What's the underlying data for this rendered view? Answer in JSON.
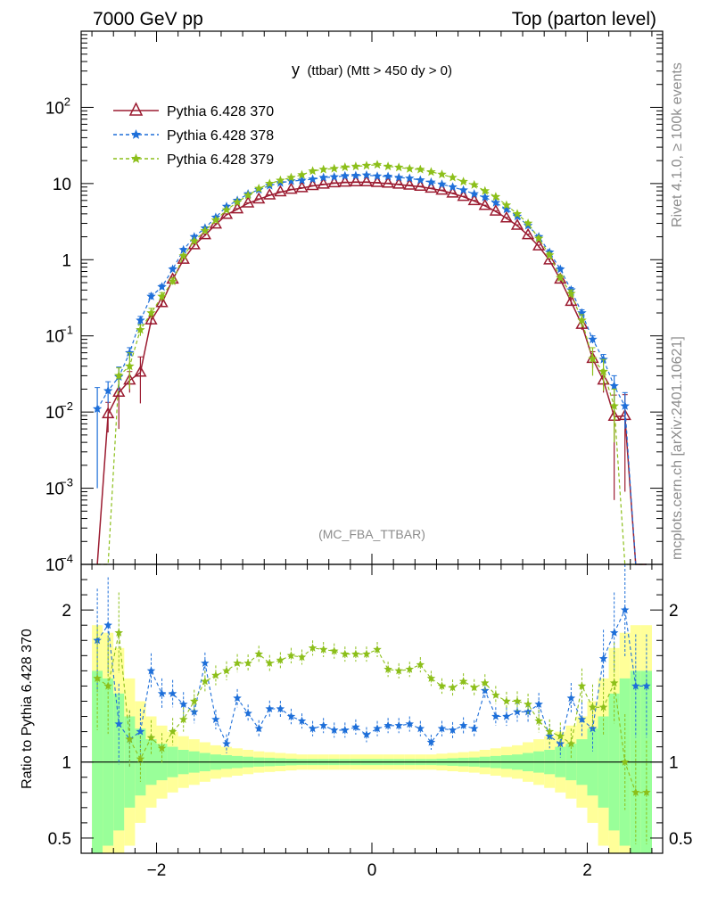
{
  "header": {
    "left": "7000 GeV pp",
    "right": "Top (parton level)"
  },
  "side_text": {
    "rivet": "Rivet 4.1.0, ≥ 100k events",
    "url": "mcplots.cern.ch [arXiv:2401.10621]"
  },
  "colors": {
    "s370": "#9b1b30",
    "s378": "#1e6fd9",
    "s379": "#8cbf1a",
    "band_outer": "#ffff99",
    "band_inner": "#99ff99",
    "label_gray": "#8c8c8c"
  },
  "chart_data": {
    "type": "line",
    "title": "y (ttbar) (Mtt > 450 dy > 0)",
    "title_main": "y",
    "title_rest": "(ttbar) (Mtt > 450 dy > 0)",
    "analysis_label": "(MC_FBA_TTBAR)",
    "xlabel": "",
    "ylabel_ratio": "Ratio to Pythia 6.428 370",
    "x_range": [
      -2.7,
      2.7
    ],
    "y_range": [
      0.0001,
      1000
    ],
    "ratio_range": [
      0.4,
      2.3
    ],
    "yscale": "log",
    "x_ticks": [
      -2,
      0,
      2
    ],
    "x_tick_labels": [
      "−2",
      "0",
      "2"
    ],
    "y_ticks": [
      {
        "base": "10",
        "exp": "−4"
      },
      {
        "base": "10",
        "exp": "−3"
      },
      {
        "base": "10",
        "exp": "−2"
      },
      {
        "base": "10",
        "exp": "−1"
      },
      {
        "base": "1",
        "exp": ""
      },
      {
        "base": "10",
        "exp": ""
      },
      {
        "base": "10",
        "exp": "2"
      }
    ],
    "ratio_ticks": [
      "0.5",
      "1",
      "2"
    ],
    "x": [
      -2.55,
      -2.45,
      -2.35,
      -2.25,
      -2.15,
      -2.05,
      -1.95,
      -1.85,
      -1.75,
      -1.65,
      -1.55,
      -1.45,
      -1.35,
      -1.25,
      -1.15,
      -1.05,
      -0.95,
      -0.85,
      -0.75,
      -0.65,
      -0.55,
      -0.45,
      -0.35,
      -0.25,
      -0.15,
      -0.05,
      0.05,
      0.15,
      0.25,
      0.35,
      0.45,
      0.55,
      0.65,
      0.75,
      0.85,
      0.95,
      1.05,
      1.15,
      1.25,
      1.35,
      1.45,
      1.55,
      1.65,
      1.75,
      1.85,
      1.95,
      2.05,
      2.15,
      2.25,
      2.35,
      2.45,
      2.55
    ],
    "series": [
      {
        "name": "Pythia 6.428 370",
        "marker": "triangle",
        "values": [
          0.0001,
          0.0094,
          0.018,
          0.026,
          0.033,
          0.16,
          0.27,
          0.55,
          1.0,
          1.55,
          2.1,
          2.9,
          3.9,
          4.6,
          5.5,
          6.2,
          7.0,
          7.7,
          8.3,
          8.7,
          9.3,
          9.7,
          10.1,
          10.3,
          10.4,
          10.4,
          10.2,
          10.0,
          9.7,
          9.4,
          9.1,
          8.6,
          8.1,
          7.4,
          6.7,
          5.9,
          5.1,
          4.3,
          3.5,
          2.8,
          2.1,
          1.5,
          0.98,
          0.55,
          0.28,
          0.14,
          0.05,
          0.026,
          0.0087,
          0.0089,
          0.0001,
          0.0001
        ],
        "err": [
          0,
          0.004,
          0.012,
          0.008,
          0.02,
          0.02,
          0.03,
          0.04,
          0.05,
          0.06,
          0.07,
          0.08,
          0.1,
          0.1,
          0.1,
          0.12,
          0.12,
          0.13,
          0.13,
          0.14,
          0.14,
          0.14,
          0.15,
          0.15,
          0.15,
          0.15,
          0.15,
          0.15,
          0.15,
          0.14,
          0.14,
          0.14,
          0.13,
          0.13,
          0.12,
          0.12,
          0.1,
          0.1,
          0.1,
          0.08,
          0.07,
          0.06,
          0.05,
          0.04,
          0.03,
          0.02,
          0.012,
          0.008,
          0.008,
          0.008,
          0,
          0
        ]
      },
      {
        "name": "Pythia 6.428 378",
        "marker": "star",
        "values": [
          0.011,
          0.019,
          0.029,
          0.06,
          0.16,
          0.33,
          0.44,
          0.75,
          1.35,
          2.0,
          2.6,
          3.6,
          5.0,
          6.0,
          7.3,
          8.3,
          9.4,
          10.2,
          10.8,
          11.0,
          11.4,
          12.0,
          12.2,
          12.6,
          12.7,
          12.9,
          12.5,
          12.4,
          12.0,
          11.7,
          11.1,
          10.4,
          9.8,
          9.0,
          8.2,
          7.3,
          6.6,
          5.6,
          4.6,
          3.7,
          2.8,
          2.0,
          1.25,
          0.75,
          0.4,
          0.2,
          0.09,
          0.049,
          0.022,
          0.012,
          0.0001,
          0.0001
        ],
        "err": [
          0.01,
          0.006,
          0.01,
          0.01,
          0.02,
          0.03,
          0.03,
          0.04,
          0.06,
          0.07,
          0.08,
          0.1,
          0.12,
          0.13,
          0.14,
          0.15,
          0.15,
          0.16,
          0.16,
          0.17,
          0.17,
          0.17,
          0.18,
          0.18,
          0.18,
          0.18,
          0.18,
          0.18,
          0.18,
          0.17,
          0.17,
          0.16,
          0.16,
          0.15,
          0.15,
          0.14,
          0.13,
          0.12,
          0.12,
          0.1,
          0.08,
          0.07,
          0.06,
          0.04,
          0.03,
          0.02,
          0.01,
          0.008,
          0.008,
          0.006,
          0,
          0
        ]
      },
      {
        "name": "Pythia 6.428 379",
        "marker": "star",
        "values": [
          0.0001,
          0.0001,
          0.03,
          0.04,
          0.12,
          0.2,
          0.33,
          0.52,
          1.12,
          1.75,
          2.4,
          3.3,
          4.5,
          5.7,
          7.0,
          8.6,
          10.0,
          11.0,
          12.0,
          13.0,
          14.6,
          15.3,
          15.7,
          16.4,
          16.8,
          17.2,
          17.7,
          16.8,
          16.3,
          15.6,
          15.3,
          14.2,
          13.2,
          12.0,
          10.6,
          9.6,
          8.0,
          6.7,
          5.2,
          4.0,
          3.0,
          1.9,
          1.15,
          0.58,
          0.36,
          0.16,
          0.05,
          0.034,
          0.012,
          0.0001,
          0.0001,
          0.0001
        ],
        "err": [
          0,
          0,
          0.008,
          0.02,
          0.02,
          0.03,
          0.04,
          0.05,
          0.06,
          0.07,
          0.08,
          0.1,
          0.12,
          0.13,
          0.14,
          0.16,
          0.17,
          0.18,
          0.18,
          0.19,
          0.2,
          0.2,
          0.2,
          0.21,
          0.21,
          0.21,
          0.21,
          0.21,
          0.21,
          0.2,
          0.2,
          0.2,
          0.19,
          0.18,
          0.18,
          0.17,
          0.16,
          0.14,
          0.13,
          0.12,
          0.1,
          0.08,
          0.07,
          0.05,
          0.04,
          0.03,
          0.02,
          0.015,
          0.008,
          0,
          0,
          0
        ]
      }
    ],
    "ratio": {
      "s378": [
        1.8,
        1.9,
        1.25,
        1.15,
        1.2,
        1.6,
        1.45,
        1.45,
        1.38,
        1.33,
        1.65,
        1.28,
        1.12,
        1.42,
        1.32,
        1.22,
        1.35,
        1.35,
        1.3,
        1.27,
        1.22,
        1.24,
        1.21,
        1.21,
        1.23,
        1.18,
        1.22,
        1.24,
        1.24,
        1.25,
        1.22,
        1.13,
        1.22,
        1.21,
        1.24,
        1.22,
        1.47,
        1.3,
        1.3,
        1.33,
        1.33,
        1.38,
        1.17,
        1.12,
        1.42,
        1.28,
        1.22,
        1.68,
        1.85,
        2.0,
        1.5,
        1.5
      ],
      "s379": [
        1.55,
        1.5,
        1.85,
        1.15,
        1.02,
        1.16,
        1.09,
        1.2,
        1.28,
        1.4,
        1.53,
        1.57,
        1.6,
        1.65,
        1.65,
        1.71,
        1.65,
        1.67,
        1.7,
        1.69,
        1.75,
        1.74,
        1.73,
        1.71,
        1.71,
        1.71,
        1.74,
        1.61,
        1.6,
        1.61,
        1.64,
        1.55,
        1.5,
        1.49,
        1.53,
        1.49,
        1.52,
        1.44,
        1.4,
        1.4,
        1.38,
        1.27,
        1.2,
        1.17,
        1.12,
        1.5,
        1.36,
        1.36,
        1.52,
        1.0,
        0.8,
        0.8
      ],
      "band_inner": [
        0.6,
        0.55,
        0.45,
        0.3,
        0.22,
        0.15,
        0.12,
        0.1,
        0.08,
        0.07,
        0.06,
        0.05,
        0.045,
        0.04,
        0.035,
        0.03,
        0.028,
        0.025,
        0.022,
        0.02,
        0.02,
        0.02,
        0.02,
        0.02,
        0.02,
        0.02,
        0.02,
        0.02,
        0.02,
        0.02,
        0.02,
        0.02,
        0.022,
        0.025,
        0.028,
        0.03,
        0.035,
        0.04,
        0.045,
        0.05,
        0.06,
        0.07,
        0.08,
        0.1,
        0.12,
        0.15,
        0.22,
        0.3,
        0.45,
        0.55,
        0.6,
        0.6
      ],
      "band_outer": [
        0.9,
        0.85,
        0.75,
        0.55,
        0.4,
        0.3,
        0.24,
        0.2,
        0.17,
        0.15,
        0.13,
        0.11,
        0.1,
        0.09,
        0.08,
        0.07,
        0.065,
        0.06,
        0.055,
        0.05,
        0.05,
        0.05,
        0.05,
        0.05,
        0.05,
        0.05,
        0.05,
        0.05,
        0.05,
        0.05,
        0.05,
        0.05,
        0.055,
        0.06,
        0.065,
        0.07,
        0.08,
        0.09,
        0.1,
        0.11,
        0.13,
        0.15,
        0.17,
        0.2,
        0.24,
        0.3,
        0.4,
        0.55,
        0.75,
        0.85,
        0.9,
        0.9
      ]
    }
  }
}
